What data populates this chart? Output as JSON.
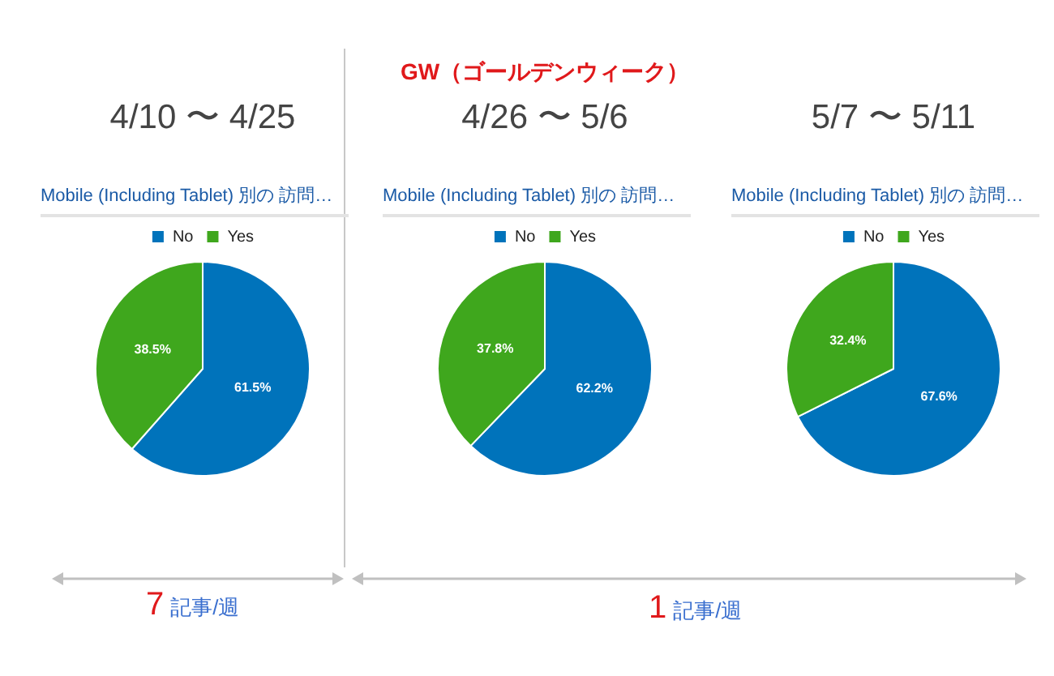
{
  "chart_data": [
    {
      "type": "pie",
      "title": "4/10 〜 4/25",
      "subtitle": "Mobile (Including Tablet) 別の 訪問…",
      "categories": [
        "No",
        "Yes"
      ],
      "values": [
        61.5,
        38.5
      ],
      "value_labels": [
        "61.5%",
        "38.5%"
      ],
      "colors": [
        "#0073bb",
        "#3fa71d"
      ],
      "legend": "top",
      "annotations": [
        "7 記事/週"
      ]
    },
    {
      "type": "pie",
      "title": "4/26 〜 5/6",
      "subtitle": "Mobile (Including Tablet) 別の 訪問…",
      "categories": [
        "No",
        "Yes"
      ],
      "values": [
        62.2,
        37.8
      ],
      "value_labels": [
        "62.2%",
        "37.8%"
      ],
      "colors": [
        "#0073bb",
        "#3fa71d"
      ],
      "legend": "top",
      "annotations": [
        "GW（ゴールデンウィーク）",
        "1 記事/週"
      ]
    },
    {
      "type": "pie",
      "title": "5/7 〜 5/11",
      "subtitle": "Mobile (Including Tablet) 別の 訪問…",
      "categories": [
        "No",
        "Yes"
      ],
      "values": [
        67.6,
        32.4
      ],
      "value_labels": [
        "67.6%",
        "32.4%"
      ],
      "colors": [
        "#0073bb",
        "#3fa71d"
      ],
      "legend": "top"
    }
  ]
}
